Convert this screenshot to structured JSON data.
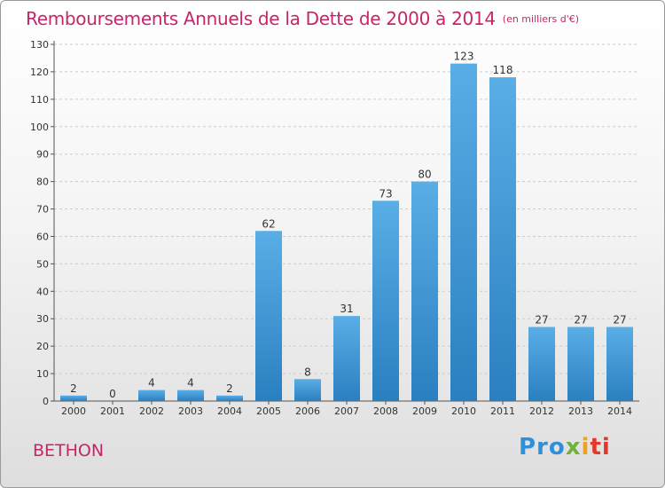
{
  "title": "Remboursements Annuels de la Dette de 2000 à 2014",
  "unit_note": "(en milliers d'€)",
  "city": "BETHON",
  "logo": {
    "p1": "Pro",
    "p2": "x",
    "p3": "i",
    "p4": "ti",
    "full": "Proxiti"
  },
  "colors": {
    "bar_light": "#5aaee6",
    "bar_dark": "#2a7fc0",
    "accent": "#c8246a",
    "grid": "#cccccc"
  },
  "chart_data": {
    "type": "bar",
    "title": "Remboursements Annuels de la Dette de 2000 à 2014",
    "xlabel": "",
    "ylabel": "",
    "categories": [
      "2000",
      "2001",
      "2002",
      "2003",
      "2004",
      "2005",
      "2006",
      "2007",
      "2008",
      "2009",
      "2010",
      "2011",
      "2012",
      "2013",
      "2014"
    ],
    "values": [
      2,
      0,
      4,
      4,
      2,
      62,
      8,
      31,
      73,
      80,
      123,
      118,
      27,
      27,
      27
    ],
    "ylim": [
      0,
      130
    ],
    "yticks": [
      0,
      10,
      20,
      30,
      40,
      50,
      60,
      70,
      80,
      90,
      100,
      110,
      120,
      130
    ],
    "grid": true,
    "legend": "none"
  }
}
